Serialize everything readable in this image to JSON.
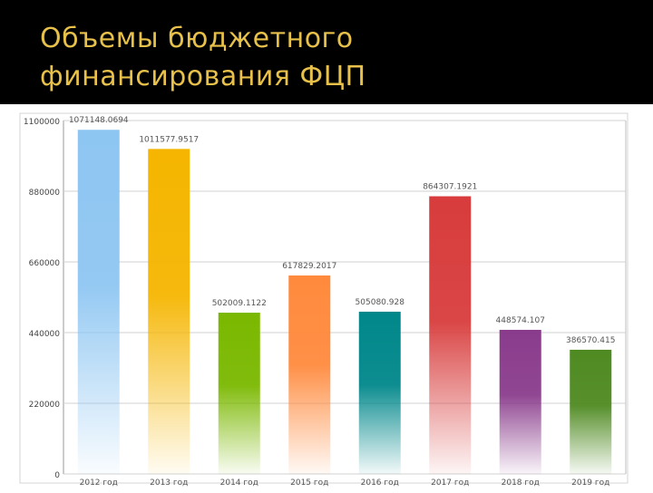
{
  "slide": {
    "title": "Объемы бюджетного\nфинансирования ФЦП"
  },
  "colors": {
    "header_bg": "#000000",
    "title": "#e8c14a",
    "band": "#ececec",
    "plot_border": "#bdbdbd"
  },
  "chart_data": {
    "type": "bar",
    "title": "",
    "xlabel": "",
    "ylabel": "",
    "ylim": [
      0,
      1100000
    ],
    "yticks": [
      0,
      220000,
      440000,
      660000,
      880000,
      1100000
    ],
    "grid": true,
    "legend": "none",
    "categories": [
      "2012 год",
      "2013 год",
      "2014 год",
      "2015 год",
      "2016 год",
      "2017 год",
      "2018 год",
      "2019 год"
    ],
    "values": [
      1071148.0694,
      1011577.9517,
      502009.1122,
      617829.2017,
      505080.928,
      864307.1921,
      448574.107,
      386570.415
    ],
    "value_labels": [
      "1071148.0694",
      "1011577.9517",
      "502009.1122",
      "617829.2017",
      "505080.928",
      "864307.1921",
      "448574.107",
      "386570.415"
    ],
    "colors": [
      "#8ec6f2",
      "#f5b500",
      "#7ab800",
      "#ff8a3d",
      "#00878a",
      "#d83c3c",
      "#8a3c8c",
      "#4f8a21"
    ]
  }
}
